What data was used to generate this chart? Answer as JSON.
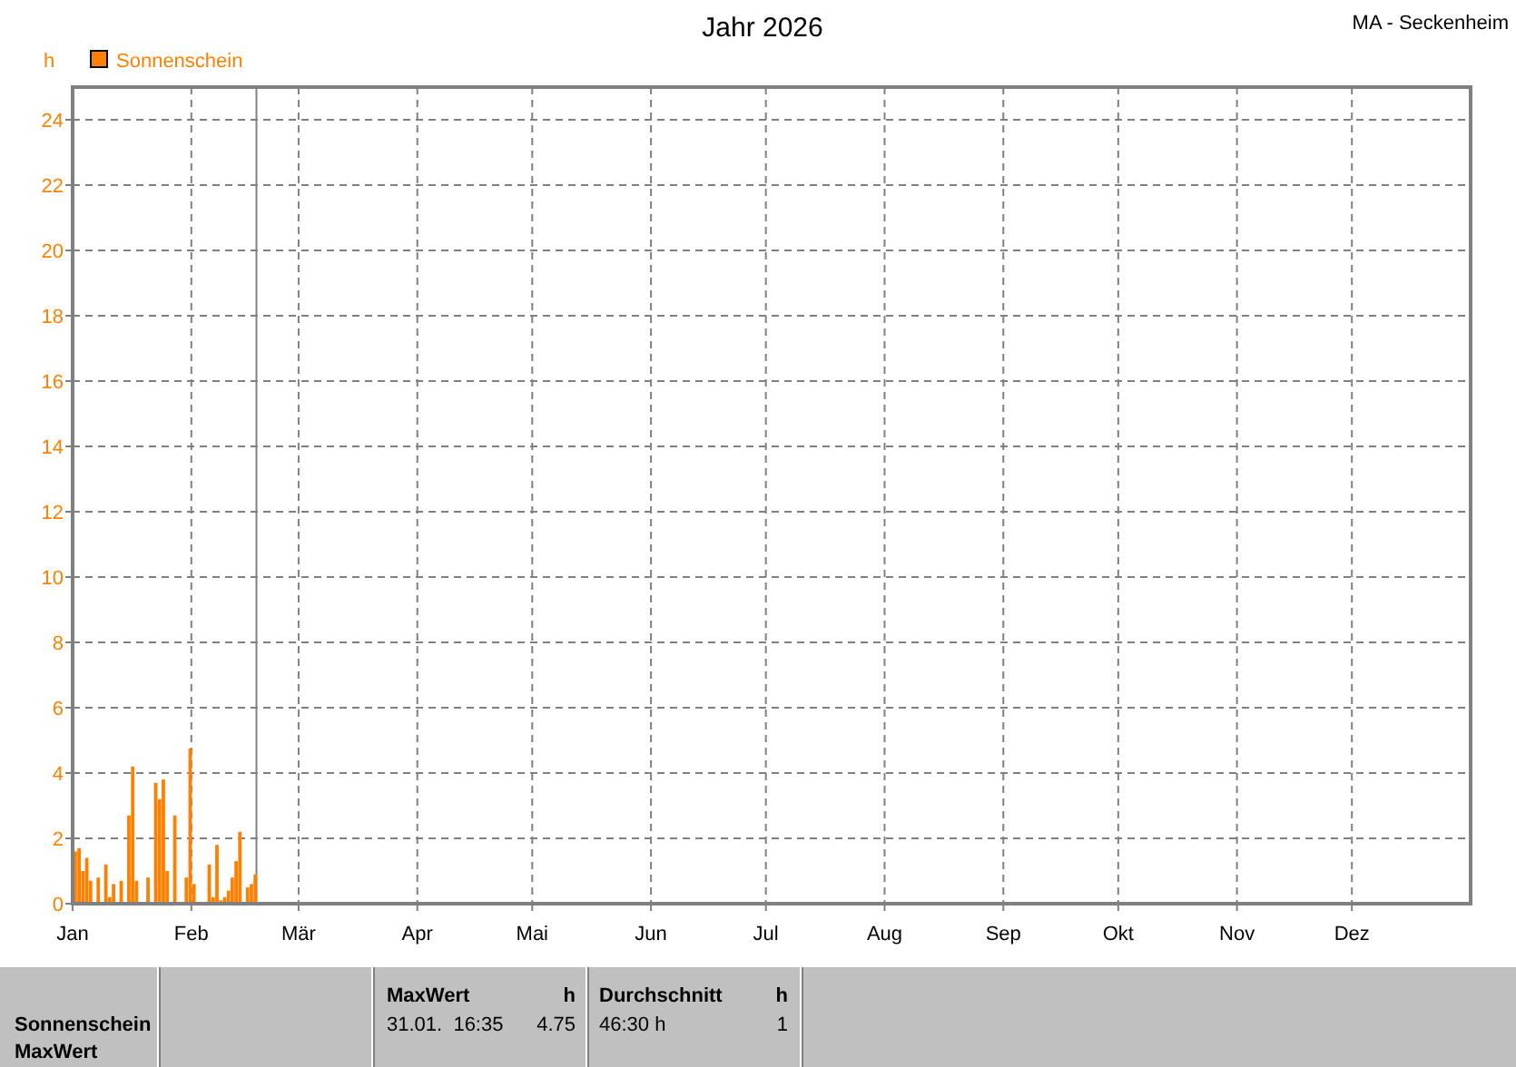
{
  "chart_data": {
    "type": "bar",
    "title": "Jahr 2026",
    "subtitle": "MA - Seckenheim",
    "ylabel": "h",
    "x": [
      "2026-01-01",
      "2026-01-02",
      "2026-01-03",
      "2026-01-04",
      "2026-01-05",
      "2026-01-07",
      "2026-01-09",
      "2026-01-10",
      "2026-01-11",
      "2026-01-13",
      "2026-01-15",
      "2026-01-16",
      "2026-01-17",
      "2026-01-20",
      "2026-01-22",
      "2026-01-23",
      "2026-01-24",
      "2026-01-25",
      "2026-01-27",
      "2026-01-30",
      "2026-01-31",
      "2026-02-01",
      "2026-02-05",
      "2026-02-06",
      "2026-02-07",
      "2026-02-08",
      "2026-02-09",
      "2026-02-10",
      "2026-02-11",
      "2026-02-12",
      "2026-02-13",
      "2026-02-15",
      "2026-02-16",
      "2026-02-17"
    ],
    "series": [
      {
        "name": "Sonnenschein",
        "color": "#ff8000",
        "values": [
          1.6,
          1.7,
          1.0,
          1.4,
          0.7,
          0.8,
          1.2,
          0.2,
          0.6,
          0.7,
          2.7,
          4.2,
          0.7,
          0.8,
          3.7,
          3.2,
          3.8,
          1.0,
          2.7,
          0.8,
          4.75,
          0.6,
          1.2,
          0.2,
          1.8,
          0.1,
          0.2,
          0.4,
          0.8,
          1.3,
          2.2,
          0.5,
          0.6,
          0.9
        ]
      }
    ],
    "xlim": [
      "2026-01-01",
      "2027-01-01"
    ],
    "xticks": [
      {
        "value": "2026-01-01",
        "label": "Jan"
      },
      {
        "value": "2026-02-01",
        "label": "Feb"
      },
      {
        "value": "2026-03-01",
        "label": "Mär"
      },
      {
        "value": "2026-04-01",
        "label": "Apr"
      },
      {
        "value": "2026-05-01",
        "label": "Mai"
      },
      {
        "value": "2026-06-01",
        "label": "Jun"
      },
      {
        "value": "2026-07-01",
        "label": "Jul"
      },
      {
        "value": "2026-08-01",
        "label": "Aug"
      },
      {
        "value": "2026-09-01",
        "label": "Sep"
      },
      {
        "value": "2026-10-01",
        "label": "Okt"
      },
      {
        "value": "2026-11-01",
        "label": "Nov"
      },
      {
        "value": "2026-12-01",
        "label": "Dez"
      }
    ],
    "ylim": [
      0,
      25
    ],
    "yticks": [
      0,
      2,
      4,
      6,
      8,
      10,
      12,
      14,
      16,
      18,
      20,
      22,
      24
    ],
    "grid": true,
    "legend": "top left",
    "ref_lines": [
      {
        "axis": "x",
        "value": "2026-02-18",
        "color": "#808080"
      }
    ],
    "annotations": [
      "Sonnenschein",
      "MaxWert",
      "MaxWert",
      "h",
      "31.01.  16:35",
      "4.75",
      "Durchschnitt",
      "h",
      "46:30 h",
      "1"
    ]
  }
}
